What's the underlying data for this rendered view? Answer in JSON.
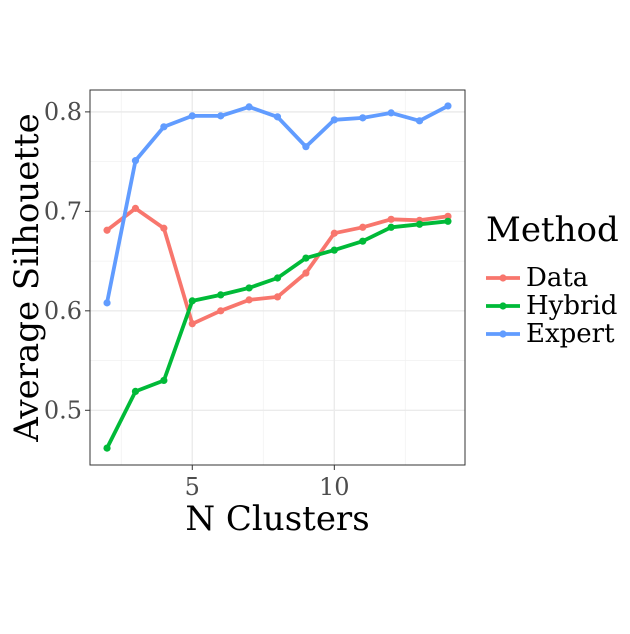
{
  "chart_data": {
    "type": "line",
    "title": "",
    "xlabel": "N Clusters",
    "ylabel": "Average Silhouette",
    "xlim": [
      1.4,
      14.6
    ],
    "ylim": [
      0.445,
      0.822
    ],
    "x_ticks": [
      5,
      10
    ],
    "x_tick_labels": [
      "5",
      "10"
    ],
    "x_minor_ticks": [
      2.5,
      7.5,
      12.5
    ],
    "y_ticks": [
      0.5,
      0.6,
      0.7,
      0.8
    ],
    "y_tick_labels": [
      "0.5",
      "0.6",
      "0.7",
      "0.8"
    ],
    "y_minor_ticks": [
      0.55,
      0.65,
      0.75
    ],
    "grid": true,
    "legend": {
      "title": "Method",
      "position": "right"
    },
    "x": [
      2,
      3,
      4,
      5,
      6,
      7,
      8,
      9,
      10,
      11,
      12,
      13,
      14
    ],
    "series": [
      {
        "name": "Data",
        "color": "#F8766D",
        "values": [
          0.681,
          0.703,
          0.683,
          0.587,
          0.6,
          0.611,
          0.614,
          0.638,
          0.678,
          0.684,
          0.692,
          0.691,
          0.695
        ]
      },
      {
        "name": "Hybrid",
        "color": "#00BA38",
        "values": [
          0.462,
          0.519,
          0.53,
          0.61,
          0.616,
          0.623,
          0.633,
          0.653,
          0.661,
          0.67,
          0.684,
          0.687,
          0.69
        ]
      },
      {
        "name": "Expert",
        "color": "#619CFF",
        "values": [
          0.608,
          0.751,
          0.785,
          0.796,
          0.796,
          0.805,
          0.795,
          0.765,
          0.792,
          0.794,
          0.799,
          0.791,
          0.806
        ]
      }
    ]
  }
}
